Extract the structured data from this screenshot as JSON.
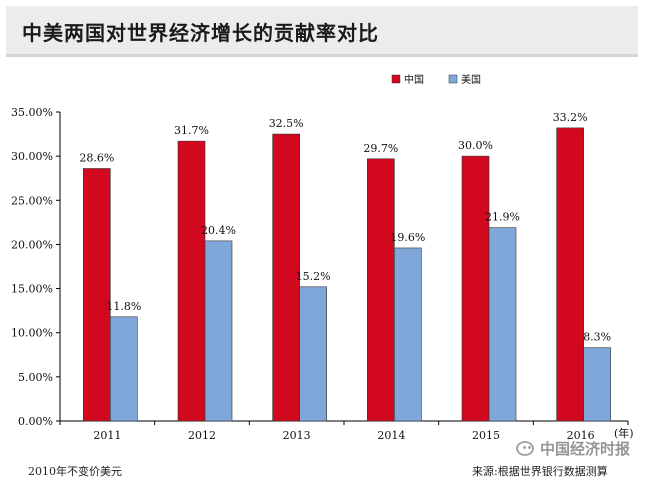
{
  "title": "中美两国对世界经济增长的贡献率对比",
  "chart_data": {
    "type": "bar",
    "categories": [
      "2011",
      "2012",
      "2013",
      "2014",
      "2015",
      "2016"
    ],
    "x_unit_label": "(年)",
    "series": [
      {
        "name": "中国",
        "color": "#d2091e",
        "values": [
          28.6,
          31.7,
          32.5,
          29.7,
          30.0,
          33.2
        ],
        "labels": [
          "28.6%",
          "31.7%",
          "32.5%",
          "29.7%",
          "30.0%",
          "33.2%"
        ]
      },
      {
        "name": "美国",
        "color": "#7fa7d9",
        "values": [
          11.8,
          20.4,
          15.2,
          19.6,
          21.9,
          8.3
        ],
        "labels": [
          "11.8%",
          "20.4%",
          "15.2%",
          "19.6%",
          "21.9%",
          "8.3%"
        ]
      }
    ],
    "ylim": [
      0,
      35
    ],
    "yticks": [
      0,
      5,
      10,
      15,
      20,
      25,
      30,
      35
    ],
    "ytick_labels": [
      "0.00%",
      "5.00%",
      "10.00%",
      "15.00%",
      "20.00%",
      "25.00%",
      "30.00%",
      "35.00%"
    ],
    "legend_position": "top-right",
    "grid": false
  },
  "footer": {
    "note": "2010年不变价美元",
    "source": "来源:根据世界银行数据测算"
  },
  "watermark": "中国经济时报"
}
